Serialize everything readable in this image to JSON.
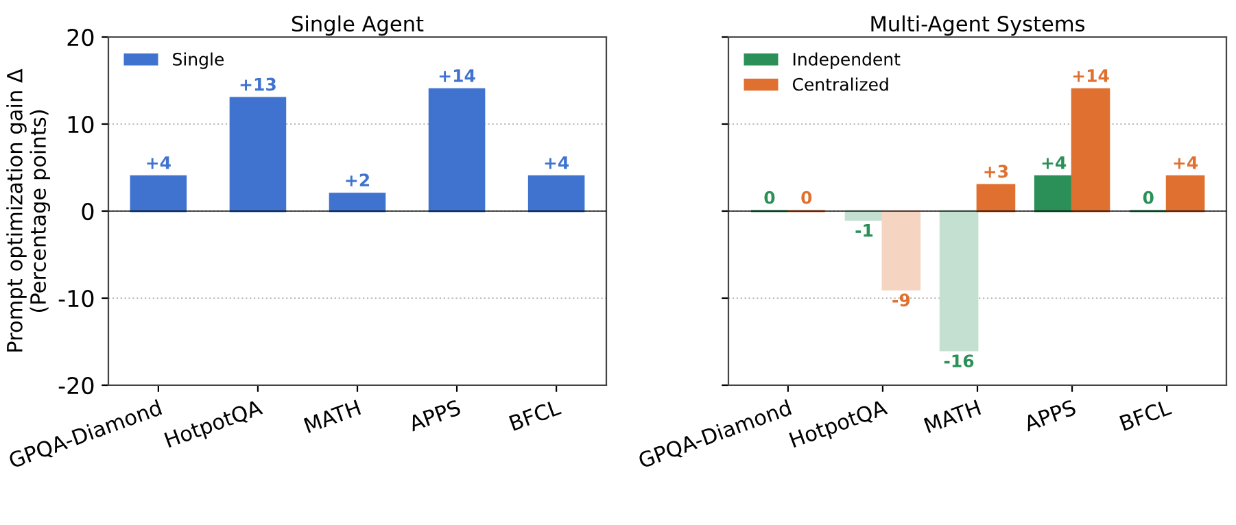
{
  "chart_data": [
    {
      "type": "bar",
      "title": "Single Agent",
      "ylabel": "Prompt optimization gain Δ\n(Percentage points)",
      "categories": [
        "GPQA-Diamond",
        "HotpotQA",
        "MATH",
        "APPS",
        "BFCL"
      ],
      "series": [
        {
          "name": "Single",
          "color": "#3f73cf",
          "values": [
            4,
            13,
            2,
            14,
            4
          ],
          "value_labels": [
            "+4",
            "+13",
            "+2",
            "+14",
            "+4"
          ]
        }
      ],
      "ylim": [
        -20,
        20
      ],
      "yticks": [
        -20,
        -10,
        0,
        10,
        20
      ],
      "grid": "y",
      "legend": "top left",
      "ref_lines": [
        {
          "axis": "y",
          "value": 0,
          "color": "#000000"
        }
      ]
    },
    {
      "type": "bar",
      "title": "Multi-Agent Systems",
      "categories": [
        "GPQA-Diamond",
        "HotpotQA",
        "MATH",
        "APPS",
        "BFCL"
      ],
      "series": [
        {
          "name": "Independent",
          "color": "#2a9058",
          "colors": [
            "#2a9058",
            "#c3e0d0",
            "#c3e0d0",
            "#2a9058",
            "#2a9058"
          ],
          "values": [
            0,
            -1,
            -16,
            4,
            0
          ],
          "value_labels": [
            "0",
            "-1",
            "-16",
            "+4",
            "0"
          ]
        },
        {
          "name": "Centralized",
          "color": "#e07030",
          "colors": [
            "#e07030",
            "#f5d5c2",
            "#e07030",
            "#e07030",
            "#e07030"
          ],
          "values": [
            0,
            -9,
            3,
            14,
            4
          ],
          "value_labels": [
            "0",
            "-9",
            "+3",
            "+14",
            "+4"
          ]
        }
      ],
      "ylim": [
        -20,
        20
      ],
      "yticks": [
        -20,
        -10,
        0,
        10,
        20
      ],
      "grid": "y",
      "legend": "top left",
      "tick_labels": "x",
      "ref_lines": [
        {
          "axis": "y",
          "value": 0,
          "color": "#000000"
        }
      ]
    }
  ]
}
